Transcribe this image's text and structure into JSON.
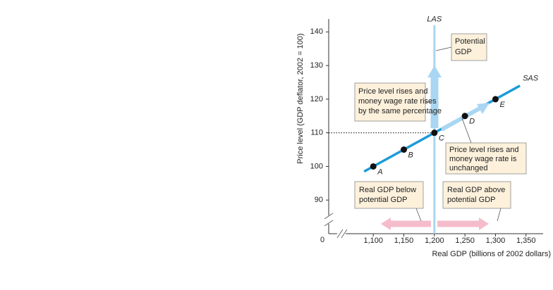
{
  "chart_data": {
    "type": "line",
    "x_label": "Real GDP (billions of 2002 dollars)",
    "y_label": "Price level (GDP deflator, 2002 = 100)",
    "origin_label": "0",
    "xlim": [
      1027,
      1378
    ],
    "ylim": [
      80,
      143
    ],
    "xticks": [
      {
        "value": 1100,
        "label": "1,100"
      },
      {
        "value": 1150,
        "label": "1,150"
      },
      {
        "value": 1200,
        "label": "1,200"
      },
      {
        "value": 1250,
        "label": "1,250"
      },
      {
        "value": 1300,
        "label": "1,300"
      },
      {
        "value": 1350,
        "label": "1,350"
      }
    ],
    "yticks": [
      90,
      100,
      110,
      120,
      130,
      140
    ],
    "series": [
      {
        "name": "LAS",
        "color": "#a9d6f2",
        "x": [
          1200,
          1200
        ],
        "values": [
          80,
          142
        ]
      },
      {
        "name": "SAS",
        "color": "#1b9bd7",
        "x": [
          1085,
          1340
        ],
        "values": [
          98.5,
          124
        ]
      }
    ],
    "points": [
      {
        "label": "A",
        "x": 1100,
        "y": 100
      },
      {
        "label": "B",
        "x": 1150,
        "y": 105
      },
      {
        "label": "C",
        "x": 1200,
        "y": 110
      },
      {
        "label": "D",
        "x": 1250,
        "y": 115
      },
      {
        "label": "E",
        "x": 1300,
        "y": 120
      }
    ],
    "annotations": [
      {
        "lines": [
          "Potential",
          "GDP"
        ]
      },
      {
        "lines": [
          "Price level rises and",
          "money wage rate rises",
          "by the same percentage"
        ]
      },
      {
        "lines": [
          "Price level rises and",
          "money wage rate is",
          "unchanged"
        ]
      },
      {
        "lines": [
          "Real GDP below",
          "potential GDP"
        ]
      },
      {
        "lines": [
          "Real GDP above",
          "potential GDP"
        ]
      }
    ]
  }
}
